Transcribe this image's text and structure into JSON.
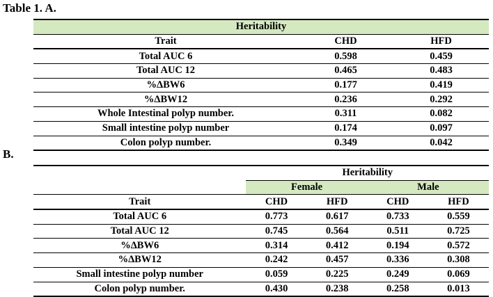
{
  "part_a": {
    "label": "Table 1. A.",
    "heading": "Heritability",
    "columns": [
      "Trait",
      "CHD",
      "HFD"
    ],
    "rows": [
      [
        "Total AUC 6",
        "0.598",
        "0.459"
      ],
      [
        "Total AUC 12",
        "0.465",
        "0.483"
      ],
      [
        "%ΔBW6",
        "0.177",
        "0.419"
      ],
      [
        "%ΔBW12",
        "0.236",
        "0.292"
      ],
      [
        "Whole Intestinal polyp number.",
        "0.311",
        "0.082"
      ],
      [
        "Small intestine polyp number",
        "0.174",
        "0.097"
      ],
      [
        "Colon polyp number.",
        "0.349",
        "0.042"
      ]
    ]
  },
  "part_b": {
    "label": "B.",
    "heading": "Heritability",
    "groups": [
      "Female",
      "Male"
    ],
    "columns": [
      "Trait",
      "CHD",
      "HFD",
      "CHD",
      "HFD"
    ],
    "rows": [
      [
        "Total AUC 6",
        "0.773",
        "0.617",
        "0.733",
        "0.559"
      ],
      [
        "Total AUC 12",
        "0.745",
        "0.564",
        "0.511",
        "0.725"
      ],
      [
        "%ΔBW6",
        "0.314",
        "0.412",
        "0.194",
        "0.572"
      ],
      [
        "%ΔBW12",
        "0.242",
        "0.457",
        "0.336",
        "0.308"
      ],
      [
        "Small intestine polyp number",
        "0.059",
        "0.225",
        "0.249",
        "0.069"
      ],
      [
        "Colon polyp number.",
        "0.430",
        "0.238",
        "0.258",
        "0.013"
      ]
    ]
  },
  "colors": {
    "header_fill": "#d5e9c0",
    "rule": "#000000"
  }
}
